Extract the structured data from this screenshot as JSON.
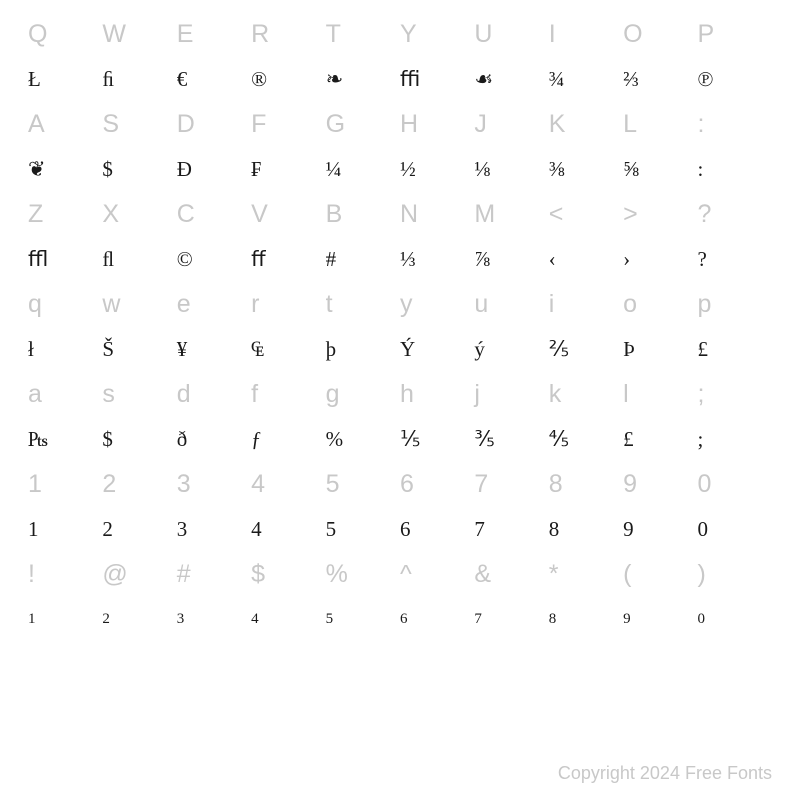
{
  "rows": [
    {
      "type": "key",
      "cells": [
        "Q",
        "W",
        "E",
        "R",
        "T",
        "Y",
        "U",
        "I",
        "O",
        "P"
      ]
    },
    {
      "type": "glyph",
      "cells": [
        "Ł",
        "ﬁ",
        "€",
        "®",
        "❧",
        "ﬃ",
        "☙",
        "¾",
        "⅔",
        "℗"
      ]
    },
    {
      "type": "key",
      "cells": [
        "A",
        "S",
        "D",
        "F",
        "G",
        "H",
        "J",
        "K",
        "L",
        ":"
      ]
    },
    {
      "type": "glyph",
      "cells": [
        "❦",
        "$",
        "Đ",
        "₣",
        "¼",
        "½",
        "⅛",
        "⅜",
        "⅝",
        ":"
      ]
    },
    {
      "type": "key",
      "cells": [
        "Z",
        "X",
        "C",
        "V",
        "B",
        "N",
        "M",
        "<",
        ">",
        "?"
      ]
    },
    {
      "type": "glyph",
      "cells": [
        "ﬄ",
        "ﬂ",
        "©",
        "ﬀ",
        "#",
        "⅓",
        "⅞",
        "‹",
        "›",
        "?"
      ]
    },
    {
      "type": "key",
      "cells": [
        "q",
        "w",
        "e",
        "r",
        "t",
        "y",
        "u",
        "i",
        "o",
        "p"
      ]
    },
    {
      "type": "glyph",
      "cells": [
        "ł",
        "Š",
        "¥",
        "₠",
        "þ",
        "Ý",
        "ý",
        "⅖",
        "Þ",
        "£"
      ]
    },
    {
      "type": "key",
      "cells": [
        "a",
        "s",
        "d",
        "f",
        "g",
        "h",
        "j",
        "k",
        "l",
        ";"
      ]
    },
    {
      "type": "glyph",
      "cells": [
        "₧",
        "$",
        "ð",
        "ƒ",
        "%",
        "⅕",
        "⅗",
        "⅘",
        "£",
        ";"
      ]
    },
    {
      "type": "key",
      "cells": [
        "1",
        "2",
        "3",
        "4",
        "5",
        "6",
        "7",
        "8",
        "9",
        "0"
      ]
    },
    {
      "type": "glyph",
      "cells": [
        "1",
        "2",
        "3",
        "4",
        "5",
        "6",
        "7",
        "8",
        "9",
        "0"
      ]
    },
    {
      "type": "key",
      "cells": [
        "!",
        "@",
        "#",
        "$",
        "%",
        "^",
        "&",
        "*",
        "(",
        ")"
      ]
    },
    {
      "type": "glyph",
      "size": "small",
      "cells": [
        "1",
        "2",
        "3",
        "4",
        "5",
        "6",
        "7",
        "8",
        "9",
        "0"
      ]
    }
  ],
  "copyright": "Copyright 2024 Free Fonts"
}
